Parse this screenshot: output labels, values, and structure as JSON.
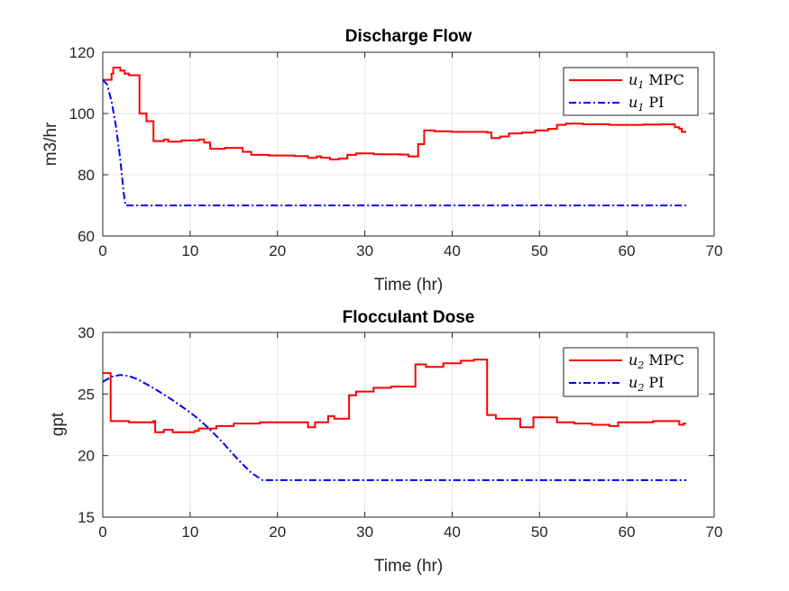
{
  "chart_data": [
    {
      "type": "line",
      "title": "Discharge Flow",
      "xlabel": "Time (hr)",
      "ylabel": "m3/hr",
      "xlim": [
        0,
        70
      ],
      "ylim": [
        60,
        120
      ],
      "xticks": [
        0,
        10,
        20,
        30,
        40,
        50,
        60,
        70
      ],
      "yticks": [
        60,
        80,
        100,
        120
      ],
      "grid": true,
      "legend_position": "top-right",
      "series": [
        {
          "name": "u1 MPC",
          "legend_var": "u",
          "legend_sub": "1",
          "legend_text": "MPC",
          "color": "#ff0000",
          "style": "solid",
          "step": true,
          "points": [
            [
              0,
              111
            ],
            [
              1,
              113
            ],
            [
              1.2,
              115
            ],
            [
              2,
              114
            ],
            [
              2.5,
              113
            ],
            [
              3,
              112.5
            ],
            [
              4.2,
              100
            ],
            [
              5,
              97.5
            ],
            [
              5.8,
              91
            ],
            [
              7,
              91.5
            ],
            [
              7.5,
              90.8
            ],
            [
              9,
              91.2
            ],
            [
              11,
              91.5
            ],
            [
              11.6,
              90.5
            ],
            [
              12.3,
              88.5
            ],
            [
              14,
              88.8
            ],
            [
              16,
              87.5
            ],
            [
              17,
              86.5
            ],
            [
              19,
              86.3
            ],
            [
              22,
              86.1
            ],
            [
              23.5,
              85.5
            ],
            [
              24.5,
              86
            ],
            [
              25,
              85.6
            ],
            [
              26,
              85
            ],
            [
              27,
              85.3
            ],
            [
              28,
              86.5
            ],
            [
              29,
              87
            ],
            [
              31,
              86.7
            ],
            [
              34,
              86.6
            ],
            [
              35,
              86
            ],
            [
              36.1,
              90
            ],
            [
              36.5,
              90
            ],
            [
              36.8,
              94.5
            ],
            [
              38,
              94.2
            ],
            [
              40,
              94
            ],
            [
              44,
              93.8
            ],
            [
              44.5,
              92
            ],
            [
              45.5,
              92.5
            ],
            [
              46.5,
              93.5
            ],
            [
              48,
              93.8
            ],
            [
              49.5,
              94.5
            ],
            [
              51,
              95
            ],
            [
              52,
              96.3
            ],
            [
              53,
              96.7
            ],
            [
              55,
              96.5
            ],
            [
              58,
              96.3
            ],
            [
              62,
              96.4
            ],
            [
              64,
              96.5
            ],
            [
              65.5,
              95.5
            ],
            [
              66,
              95
            ],
            [
              66.3,
              94
            ],
            [
              66.8,
              94
            ]
          ]
        },
        {
          "name": "u1 PI",
          "legend_var": "u",
          "legend_sub": "1",
          "legend_text": "PI",
          "color": "#0000ff",
          "style": "dashdot",
          "step": false,
          "points": [
            [
              0,
              111
            ],
            [
              0.5,
              109.5
            ],
            [
              1,
              104
            ],
            [
              1.5,
              96
            ],
            [
              2,
              85
            ],
            [
              2.4,
              74
            ],
            [
              2.6,
              70
            ],
            [
              66.8,
              70
            ]
          ]
        }
      ]
    },
    {
      "type": "line",
      "title": "Flocculant Dose",
      "xlabel": "Time (hr)",
      "ylabel": "gpt",
      "xlim": [
        0,
        70
      ],
      "ylim": [
        15,
        30
      ],
      "xticks": [
        0,
        10,
        20,
        30,
        40,
        50,
        60,
        70
      ],
      "yticks": [
        15,
        20,
        25,
        30
      ],
      "grid": true,
      "legend_position": "top-right",
      "series": [
        {
          "name": "u2 MPC",
          "legend_var": "u",
          "legend_sub": "2",
          "legend_text": "MPC",
          "color": "#ff0000",
          "style": "solid",
          "step": true,
          "points": [
            [
              0,
              26.7
            ],
            [
              0.9,
              22.8
            ],
            [
              3,
              22.7
            ],
            [
              5.8,
              22.8
            ],
            [
              6,
              21.9
            ],
            [
              7,
              22.1
            ],
            [
              8,
              21.9
            ],
            [
              10.5,
              22.0
            ],
            [
              11,
              22.2
            ],
            [
              13,
              22.4
            ],
            [
              15,
              22.6
            ],
            [
              18,
              22.7
            ],
            [
              22,
              22.7
            ],
            [
              23.5,
              22.3
            ],
            [
              24.3,
              22.7
            ],
            [
              25.8,
              23.2
            ],
            [
              26.5,
              23.0
            ],
            [
              28.2,
              24.9
            ],
            [
              29,
              25.2
            ],
            [
              31,
              25.5
            ],
            [
              33,
              25.6
            ],
            [
              35.8,
              27.4
            ],
            [
              37,
              27.2
            ],
            [
              39,
              27.5
            ],
            [
              41,
              27.7
            ],
            [
              42.5,
              27.8
            ],
            [
              44,
              23.3
            ],
            [
              45,
              23.0
            ],
            [
              47.8,
              22.3
            ],
            [
              49.3,
              23.1
            ],
            [
              52,
              22.7
            ],
            [
              54,
              22.6
            ],
            [
              56,
              22.5
            ],
            [
              58,
              22.4
            ],
            [
              59,
              22.7
            ],
            [
              63,
              22.8
            ],
            [
              66,
              22.5
            ],
            [
              66.5,
              22.6
            ],
            [
              66.8,
              22.6
            ]
          ]
        },
        {
          "name": "u2 PI",
          "legend_var": "u",
          "legend_sub": "2",
          "legend_text": "PI",
          "color": "#0000ff",
          "style": "dashdot",
          "step": false,
          "points": [
            [
              0,
              26.0
            ],
            [
              1,
              26.4
            ],
            [
              2,
              26.55
            ],
            [
              3,
              26.45
            ],
            [
              4,
              26.2
            ],
            [
              5,
              25.8
            ],
            [
              6,
              25.4
            ],
            [
              7,
              24.95
            ],
            [
              8,
              24.5
            ],
            [
              9,
              24.0
            ],
            [
              10,
              23.5
            ],
            [
              11,
              22.95
            ],
            [
              12,
              22.3
            ],
            [
              13,
              21.6
            ],
            [
              14,
              20.85
            ],
            [
              15,
              20.05
            ],
            [
              16,
              19.3
            ],
            [
              17,
              18.6
            ],
            [
              18.3,
              18.0
            ],
            [
              66.8,
              18.0
            ]
          ]
        }
      ]
    }
  ]
}
